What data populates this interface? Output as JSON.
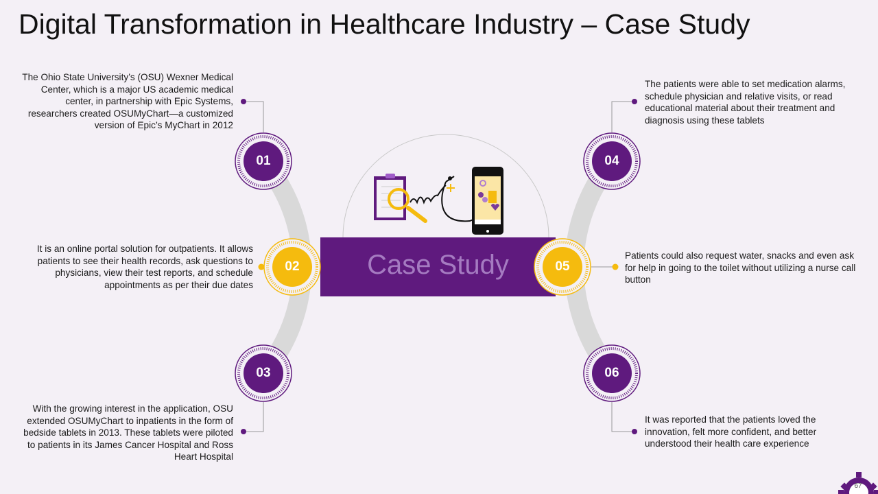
{
  "title": "Digital Transformation in Healthcare Industry – Case Study",
  "center_label": "Case Study",
  "colors": {
    "purple": "#5f1a7e",
    "yellow": "#f5bb0e",
    "arc_gray": "#d9d9d9",
    "background": "#f4f0f6"
  },
  "steps": [
    {
      "num": "01",
      "text": "The Ohio State University’s (OSU) Wexner Medical Center, which is a major US academic medical center, in partnership with Epic Systems, researchers created OSUMyChart—a customized version of Epic’s MyChart in 2012"
    },
    {
      "num": "02",
      "text": "It is an online portal solution for outpatients. It allows patients to see their health records, ask questions to physicians, view their test reports, and schedule appointments as per their due dates"
    },
    {
      "num": "03",
      "text": "With the growing interest in the application, OSU extended OSUMyChart to inpatients in the form of bedside tablets in 2013. These tablets were piloted to patients in its James Cancer Hospital and Ross Heart Hospital"
    },
    {
      "num": "04",
      "text": "The patients were able to set medication alarms, schedule physician and relative visits, or read educational material about their treatment and diagnosis using these tablets"
    },
    {
      "num": "05",
      "text": "Patients could also request water, snacks and even ask for help in going to the toilet without utilizing a nurse call button"
    },
    {
      "num": "06",
      "text": "It was reported that the patients loved the innovation, felt more confident, and better understood their health care experience"
    }
  ],
  "page_number": "67",
  "icons": [
    "clipboard-icon",
    "magnifier-icon",
    "stethoscope-icon",
    "smartphone-icon",
    "gear-icon"
  ]
}
